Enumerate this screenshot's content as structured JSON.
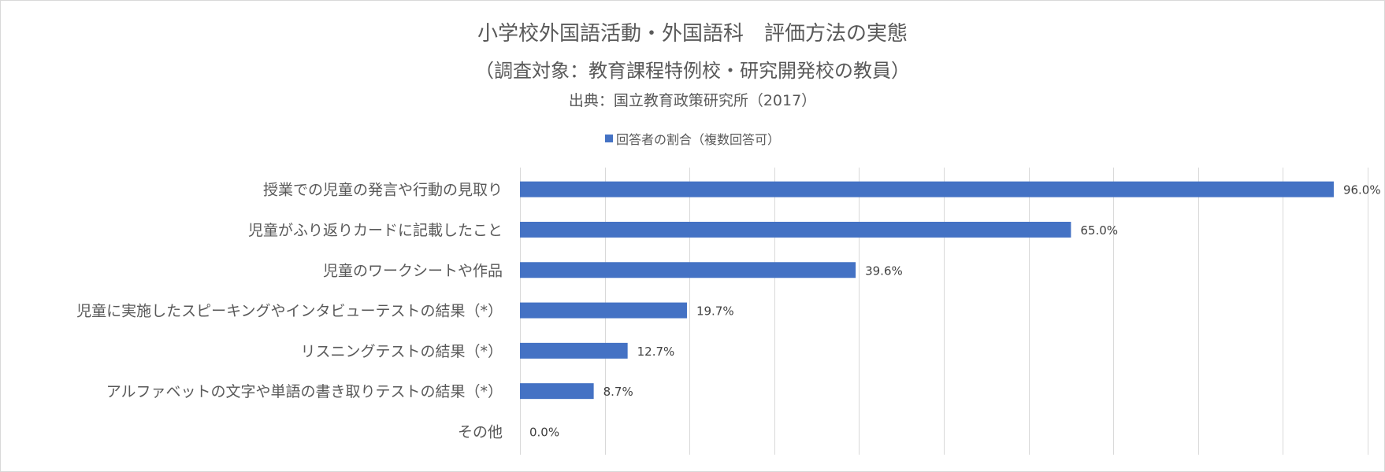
{
  "chart_data": {
    "type": "bar",
    "orientation": "horizontal",
    "title": "小学校外国語活動・外国語科　評価方法の実態",
    "subtitle": "（調査対象：教育課程特例校・研究開発校の教員）",
    "source": "出典：国立教育政策研究所（2017）",
    "legend_position": "top",
    "categories": [
      "授業での児童の発言や行動の見取り",
      "児童がふり返りカードに記載したこと",
      "児童のワークシートや作品",
      "児童に実施したスピーキングやインタビューテストの結果（*）",
      "リスニングテストの結果（*）",
      "アルファベットの文字や単語の書き取りテストの結果（*）",
      "その他"
    ],
    "series": [
      {
        "name": "回答者の割合（複数回答可）",
        "values": [
          96.0,
          65.0,
          39.6,
          19.7,
          12.7,
          8.7,
          0.0
        ],
        "labels": [
          "96.0%",
          "65.0%",
          "39.6%",
          "19.7%",
          "12.7%",
          "8.7%",
          "0.0%"
        ],
        "color": "#4472c4"
      }
    ],
    "xlim": [
      0,
      100
    ],
    "x_gridlines_every": 10,
    "grid": true,
    "tick_labels_shown": false
  }
}
